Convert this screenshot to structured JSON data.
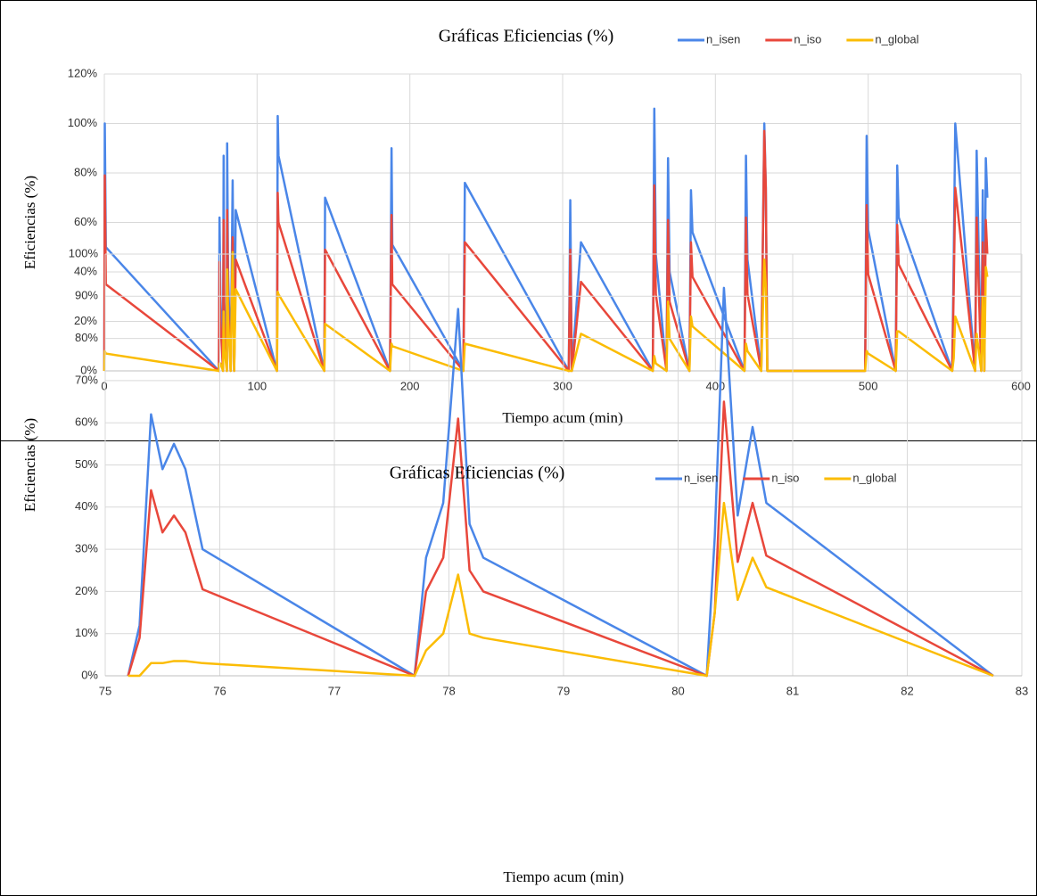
{
  "chart_data": [
    {
      "type": "line",
      "title": "Gráficas Eficiencias (%)",
      "xlabel": "Tiempo acum (min)",
      "ylabel": "Eficiencias (%)",
      "x": [
        0,
        0.3,
        1,
        75,
        75.4,
        76,
        77.7,
        78.1,
        78.5,
        80.2,
        80.4,
        81,
        82.7,
        84,
        85,
        86,
        113,
        113.5,
        114,
        144,
        144.5,
        187,
        188,
        188.5,
        235,
        236,
        304,
        305,
        306,
        312,
        359,
        360,
        361,
        368,
        369,
        370,
        383,
        384,
        385,
        419,
        420,
        421,
        430,
        432,
        433,
        434,
        498,
        499,
        500,
        518,
        519,
        520,
        555,
        556,
        557,
        570,
        571,
        574,
        575,
        576,
        577,
        578
      ],
      "series": [
        {
          "name": "n_isen",
          "color": "#4a86e8",
          "values": [
            0,
            100,
            50,
            0,
            62,
            30,
            0,
            87,
            28,
            0,
            92,
            41,
            0,
            77,
            0,
            65,
            0,
            103,
            87,
            0,
            70,
            0,
            90,
            51,
            0,
            76,
            0,
            69,
            0,
            52,
            0,
            106,
            47,
            0,
            86,
            40,
            0,
            73,
            56,
            0,
            87,
            45,
            0,
            100,
            74,
            0,
            0,
            95,
            57,
            0,
            83,
            62,
            0,
            46,
            100,
            0,
            89,
            0,
            73,
            0,
            86,
            70
          ]
        },
        {
          "name": "n_iso",
          "color": "#e8473b",
          "values": [
            0,
            79,
            35,
            0,
            44,
            20,
            0,
            61,
            20,
            0,
            65,
            28,
            0,
            54,
            0,
            45,
            0,
            72,
            60,
            0,
            49,
            0,
            63,
            35,
            0,
            52,
            0,
            49,
            0,
            36,
            0,
            75,
            31,
            0,
            61,
            28,
            0,
            52,
            38,
            0,
            62,
            31,
            0,
            97,
            74,
            0,
            0,
            67,
            39,
            0,
            59,
            43,
            0,
            33,
            74,
            0,
            62,
            0,
            52,
            0,
            61,
            47
          ]
        },
        {
          "name": "n_global",
          "color": "#fbbc04",
          "values": [
            0,
            8,
            7,
            0,
            3,
            3,
            0,
            24,
            9,
            0,
            41,
            21,
            0,
            48,
            0,
            33,
            0,
            32,
            31,
            0,
            19,
            0,
            11,
            10,
            0,
            11,
            0,
            0,
            0,
            15,
            0,
            6,
            3,
            0,
            28,
            13,
            0,
            22,
            18,
            0,
            11,
            8,
            0,
            45,
            34,
            0,
            0,
            8,
            7,
            0,
            16,
            16,
            0,
            5,
            22,
            0,
            15,
            0,
            30,
            0,
            42,
            38
          ]
        }
      ],
      "xlim": [
        0,
        600
      ],
      "xticks": [
        0,
        100,
        200,
        300,
        400,
        500,
        600
      ],
      "ylim": [
        0,
        120
      ],
      "yticks": [
        {
          "value": 0,
          "label": "0%"
        },
        {
          "value": 20,
          "label": "20%"
        },
        {
          "value": 40,
          "label": "40%"
        },
        {
          "value": 60,
          "label": "60%"
        },
        {
          "value": 80,
          "label": "80%"
        },
        {
          "value": 100,
          "label": "100%"
        },
        {
          "value": 120,
          "label": "120%"
        }
      ],
      "grid": true,
      "legend": "top-right"
    },
    {
      "type": "line",
      "title": "Gráficas Eficiencias (%)",
      "xlabel": "Tiempo acum (min)",
      "ylabel": "Eficiencias (%)",
      "x": [
        75.2,
        75.3,
        75.4,
        75.5,
        75.6,
        75.7,
        75.85,
        77.7,
        77.8,
        77.95,
        78.08,
        78.18,
        78.3,
        80.25,
        80.32,
        80.4,
        80.52,
        80.65,
        80.77,
        82.75
      ],
      "series": [
        {
          "name": "n_isen",
          "color": "#4a86e8",
          "values": [
            0,
            12,
            62,
            49,
            55,
            49,
            30,
            0,
            28,
            41,
            87,
            36,
            28,
            0,
            33,
            92,
            38,
            59,
            41,
            0
          ]
        },
        {
          "name": "n_iso",
          "color": "#e8473b",
          "values": [
            0,
            9,
            44,
            34,
            38,
            34,
            20.5,
            0,
            20,
            28,
            61,
            25,
            20,
            0,
            15,
            65,
            27,
            41,
            28.5,
            0
          ]
        },
        {
          "name": "n_global",
          "color": "#fbbc04",
          "values": [
            0,
            0,
            3,
            3,
            3.5,
            3.5,
            3,
            0,
            6,
            10,
            24,
            10,
            9,
            0,
            15,
            41,
            18,
            28,
            21,
            0
          ]
        }
      ],
      "xlim": [
        75,
        83
      ],
      "xticks": [
        75,
        76,
        77,
        78,
        79,
        80,
        81,
        82,
        83
      ],
      "ylim": [
        0,
        100
      ],
      "yticks": [
        {
          "value": 0,
          "label": "0%"
        },
        {
          "value": 10,
          "label": "10%"
        },
        {
          "value": 20,
          "label": "20%"
        },
        {
          "value": 30,
          "label": "30%"
        },
        {
          "value": 40,
          "label": "40%"
        },
        {
          "value": 50,
          "label": "50%"
        },
        {
          "value": 60,
          "label": "60%"
        },
        {
          "value": 70,
          "label": "70%"
        },
        {
          "value": 80,
          "label": "80%"
        },
        {
          "value": 90,
          "label": "90%"
        },
        {
          "value": 100,
          "label": "100%"
        }
      ],
      "grid": true,
      "legend": "top-right"
    }
  ]
}
